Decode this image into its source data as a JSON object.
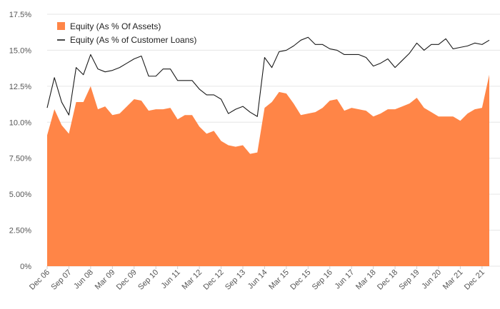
{
  "colors": {
    "area": "#ff8547",
    "line": "#1a1a1a",
    "grid": "#e6e6e6",
    "axis_text": "#555555",
    "background": "#ffffff"
  },
  "legend": {
    "area_label": "Equity (As % Of Assets)",
    "line_label": "Equity (As % of Customer Loans)",
    "placement": "top-left"
  },
  "chart_data": {
    "type": "area",
    "title": "",
    "xlabel": "",
    "ylabel": "",
    "ylim": [
      0,
      17.5
    ],
    "yticks": [
      "0%",
      "2.50%",
      "5.00%",
      "7.50%",
      "10.0%",
      "12.5%",
      "15.0%",
      "17.5%"
    ],
    "ytick_values": [
      0,
      2.5,
      5,
      7.5,
      10,
      12.5,
      15,
      17.5
    ],
    "grid": true,
    "x_tick_labels": [
      "Dec 06",
      "Sep 07",
      "Jun 08",
      "Mar 09",
      "Dec 09",
      "Sep 10",
      "Jun 11",
      "Mar 12",
      "Dec 12",
      "Sep 13",
      "Jun 14",
      "Mar 15",
      "Dec 15",
      "Sep 16",
      "Jun 17",
      "Mar 18",
      "Dec 18",
      "Sep 19",
      "Jun 20",
      "Mar 21",
      "Dec 21"
    ],
    "x_tick_index_step": 3,
    "series": [
      {
        "name": "Equity (As % Of Assets)",
        "style": "area",
        "values": [
          9.1,
          10.9,
          9.8,
          9.2,
          11.4,
          11.4,
          12.5,
          10.9,
          11.1,
          10.5,
          10.6,
          11.1,
          11.6,
          11.5,
          10.8,
          10.9,
          10.9,
          11.0,
          10.2,
          10.5,
          10.5,
          9.7,
          9.2,
          9.4,
          8.7,
          8.4,
          8.3,
          8.4,
          7.8,
          7.9,
          11.0,
          11.4,
          12.1,
          12.0,
          11.3,
          10.5,
          10.6,
          10.7,
          11.0,
          11.5,
          11.6,
          10.8,
          11.0,
          10.9,
          10.8,
          10.4,
          10.6,
          10.9,
          10.9,
          11.1,
          11.3,
          11.7,
          11.0,
          10.7,
          10.4,
          10.4,
          10.4,
          10.1,
          10.6,
          10.9,
          11.0,
          13.3
        ]
      },
      {
        "name": "Equity (As % of Customer Loans)",
        "style": "line",
        "values": [
          11.0,
          13.1,
          11.4,
          10.5,
          13.8,
          13.3,
          14.7,
          13.7,
          13.5,
          13.6,
          13.8,
          14.1,
          14.4,
          14.6,
          13.2,
          13.2,
          13.7,
          13.7,
          12.9,
          12.9,
          12.9,
          12.3,
          11.9,
          11.9,
          11.6,
          10.6,
          10.9,
          11.1,
          10.7,
          10.4,
          14.5,
          13.8,
          14.9,
          15.0,
          15.3,
          15.7,
          15.9,
          15.4,
          15.4,
          15.1,
          15.0,
          14.7,
          14.7,
          14.7,
          14.5,
          13.9,
          14.1,
          14.4,
          13.8,
          14.3,
          14.8,
          15.5,
          15.0,
          15.4,
          15.4,
          15.8,
          15.1,
          15.2,
          15.3,
          15.5,
          15.4,
          15.7
        ]
      }
    ]
  }
}
